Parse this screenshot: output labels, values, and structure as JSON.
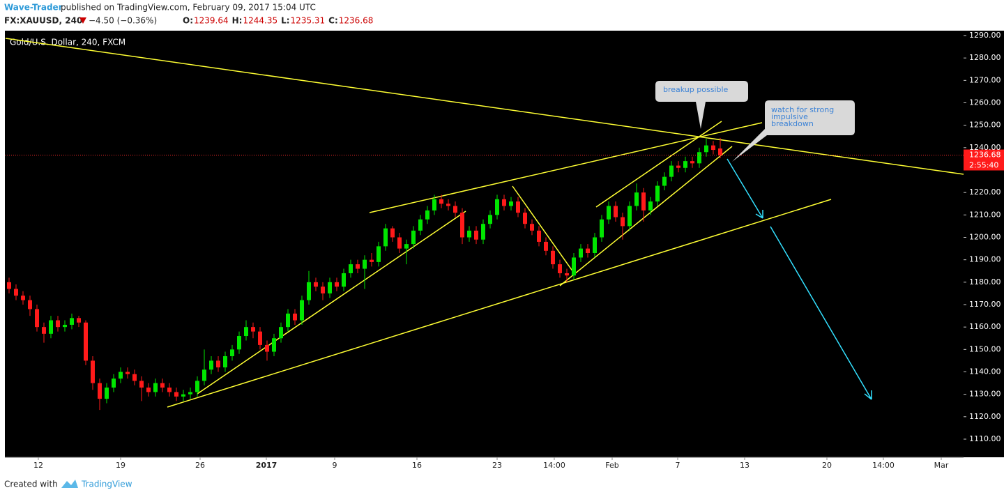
{
  "header": {
    "author": "Wave-Trader",
    "published": "published on TradingView.com, February 09, 2017 15:04 UTC",
    "symbol": "FX:XAUUSD, 240",
    "change": "−4.50 (−0.36%)",
    "ohlc": [
      {
        "key": "O:",
        "value": "1239.64"
      },
      {
        "key": "H:",
        "value": "1244.35"
      },
      {
        "key": "L:",
        "value": "1235.31"
      },
      {
        "key": "C:",
        "value": "1236.68"
      }
    ]
  },
  "chart_data": {
    "type": "candlestick",
    "title": "Gold/U.S. Dollar, 240, FXCM",
    "up_color": "#00e600",
    "down_color": "#ff1a1a",
    "open": [
      1180,
      1177,
      1174,
      1172,
      1168,
      1160,
      1157,
      1163,
      1160,
      1161,
      1164,
      1162,
      1145,
      1135,
      1128,
      1133,
      1137,
      1140,
      1139,
      1136,
      1133,
      1131,
      1135,
      1133,
      1131,
      1129,
      1130,
      1131,
      1136,
      1141,
      1145,
      1142,
      1147,
      1150,
      1156,
      1160,
      1158,
      1152,
      1149,
      1155,
      1160,
      1166,
      1163,
      1172,
      1180,
      1178,
      1175,
      1180,
      1178,
      1184,
      1188,
      1186,
      1190,
      1189,
      1196,
      1204,
      1200,
      1195,
      1197,
      1203,
      1208,
      1212,
      1217,
      1215,
      1214,
      1211,
      1200,
      1203,
      1199,
      1206,
      1210,
      1217,
      1214,
      1216,
      1211,
      1206,
      1203,
      1198,
      1194,
      1188,
      1184,
      1183,
      1191,
      1195,
      1193,
      1200,
      1208,
      1214,
      1209,
      1205,
      1214,
      1220,
      1212,
      1216,
      1223,
      1227,
      1232,
      1231,
      1234,
      1233,
      1238,
      1241,
      1239.64
    ],
    "high": [
      1182,
      1179,
      1176,
      1174,
      1170,
      1162,
      1165,
      1165,
      1163,
      1166,
      1165,
      1163,
      1147,
      1137,
      1135,
      1139,
      1142,
      1142,
      1141,
      1138,
      1135,
      1137,
      1137,
      1135,
      1133,
      1132,
      1133,
      1138,
      1150,
      1147,
      1147,
      1149,
      1152,
      1158,
      1163,
      1162,
      1160,
      1154,
      1157,
      1162,
      1168,
      1168,
      1174,
      1185,
      1182,
      1180,
      1182,
      1182,
      1186,
      1190,
      1190,
      1192,
      1193,
      1198,
      1206,
      1205,
      1202,
      1199,
      1205,
      1210,
      1214,
      1219,
      1219,
      1217,
      1216,
      1213,
      1205,
      1205,
      1208,
      1212,
      1219,
      1219,
      1218,
      1218,
      1213,
      1208,
      1205,
      1200,
      1196,
      1190,
      1186,
      1193,
      1197,
      1197,
      1202,
      1210,
      1216,
      1216,
      1211,
      1216,
      1224,
      1222,
      1218,
      1225,
      1229,
      1234,
      1234,
      1236,
      1236,
      1240,
      1244,
      1243,
      1244.35
    ],
    "low": [
      1175,
      1172,
      1170,
      1165,
      1158,
      1153,
      1155,
      1158,
      1158,
      1159,
      1160,
      1143,
      1132,
      1123,
      1126,
      1131,
      1135,
      1137,
      1134,
      1127,
      1129,
      1129,
      1131,
      1129,
      1127,
      1127,
      1128,
      1129,
      1134,
      1139,
      1140,
      1140,
      1145,
      1148,
      1154,
      1155,
      1150,
      1145,
      1147,
      1153,
      1158,
      1161,
      1161,
      1170,
      1176,
      1172,
      1173,
      1176,
      1176,
      1182,
      1184,
      1177,
      1187,
      1187,
      1194,
      1198,
      1193,
      1188,
      1195,
      1201,
      1206,
      1210,
      1213,
      1212,
      1209,
      1197,
      1198,
      1197,
      1197,
      1204,
      1208,
      1212,
      1212,
      1209,
      1204,
      1201,
      1196,
      1192,
      1186,
      1182,
      1180,
      1181,
      1189,
      1191,
      1191,
      1198,
      1206,
      1207,
      1199,
      1203,
      1212,
      1207,
      1210,
      1214,
      1221,
      1225,
      1229,
      1229,
      1231,
      1231,
      1236,
      1237,
      1235.31
    ],
    "close": [
      1177,
      1174,
      1172,
      1168,
      1160,
      1157,
      1163,
      1160,
      1161,
      1164,
      1162,
      1145,
      1135,
      1128,
      1133,
      1137,
      1140,
      1139,
      1136,
      1133,
      1131,
      1135,
      1133,
      1131,
      1129,
      1130,
      1131,
      1136,
      1141,
      1145,
      1142,
      1147,
      1150,
      1156,
      1160,
      1158,
      1152,
      1149,
      1155,
      1160,
      1166,
      1163,
      1172,
      1180,
      1178,
      1175,
      1180,
      1178,
      1184,
      1188,
      1186,
      1190,
      1189,
      1196,
      1204,
      1200,
      1195,
      1197,
      1203,
      1208,
      1212,
      1217,
      1215,
      1214,
      1211,
      1200,
      1203,
      1199,
      1206,
      1210,
      1217,
      1214,
      1216,
      1211,
      1206,
      1203,
      1198,
      1194,
      1188,
      1184,
      1183,
      1191,
      1195,
      1193,
      1200,
      1208,
      1214,
      1209,
      1205,
      1214,
      1220,
      1212,
      1216,
      1223,
      1227,
      1232,
      1231,
      1234,
      1233,
      1238,
      1241,
      1239,
      1236.68
    ],
    "ylim": [
      1110,
      1290
    ],
    "yticks": [
      {
        "value": 1290,
        "label": "1290.00"
      },
      {
        "value": 1280,
        "label": "1280.00"
      },
      {
        "value": 1270,
        "label": "1270.00"
      },
      {
        "value": 1260,
        "label": "1260.00"
      },
      {
        "value": 1250,
        "label": "1250.00"
      },
      {
        "value": 1240,
        "label": "1240.00"
      },
      {
        "value": 1220,
        "label": "1220.00"
      },
      {
        "value": 1210,
        "label": "1210.00"
      },
      {
        "value": 1200,
        "label": "1200.00"
      },
      {
        "value": 1190,
        "label": "1190.00"
      },
      {
        "value": 1180,
        "label": "1180.00"
      },
      {
        "value": 1170,
        "label": "1170.00"
      },
      {
        "value": 1160,
        "label": "1160.00"
      },
      {
        "value": 1150,
        "label": "1150.00"
      },
      {
        "value": 1140,
        "label": "1140.00"
      },
      {
        "value": 1130,
        "label": "1130.00"
      },
      {
        "value": 1120,
        "label": "1120.00"
      },
      {
        "value": 1110,
        "label": "1110.00"
      }
    ],
    "xticks": [
      "12",
      "19",
      "26",
      "2017",
      "9",
      "16",
      "23",
      "14:00",
      "Feb",
      "7",
      "13",
      "20",
      "14:00",
      "Mar"
    ],
    "last_price": {
      "value": 1236.68,
      "label": "1236.68"
    },
    "countdown": "2:55:40",
    "annotations": {
      "breakup": "breakup possible",
      "watch": [
        "watch for strong",
        "impulsive",
        "breakdown"
      ]
    }
  },
  "footer": {
    "created": "Created with",
    "brand": "TradingView"
  }
}
